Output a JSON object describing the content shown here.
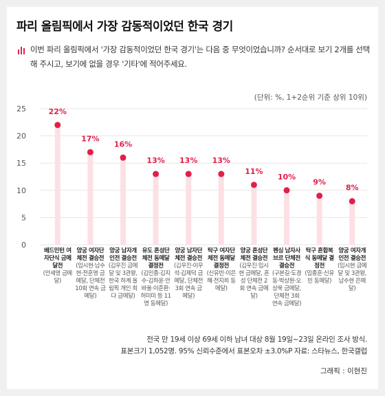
{
  "title": "파리 올림픽에서 가장 감동적이었던 한국 경기",
  "question": "이번 파리 올림픽에서 '가장 감동적이었던 한국 경기'는 다음 중 무엇이었습니까? 순서대로 보기 2개를 선택해 주시고, 보기에 없을 경우 '기타'에 적어주세요.",
  "unit_note": "(단위: %, 1+2순위 기준 상위 10위)",
  "footnote_line1": "전국 만 19세 이상 69세 이하 남녀 대상 8월 19일~23일 온라인 조사 방식.",
  "footnote_line2": "표본크기 1,052명. 95% 신뢰수준에서 표본오차 ±3.0%P 자료: 스타뉴스, 한국갤럽",
  "credit": "그래픽 : 이현진",
  "colors": {
    "dot": "#e0204a",
    "bar": "#fde0e4",
    "value_label": "#e0204a",
    "grid": "#e6e6e6",
    "icon": "#e0204a"
  },
  "chart_data": {
    "type": "bar",
    "title": "파리 올림픽에서 가장 감동적이었던 한국 경기",
    "ylim": [
      0,
      25
    ],
    "yticks": [
      0,
      5,
      10,
      15,
      20,
      25
    ],
    "grid": true,
    "categories": [
      {
        "main": "배드민턴 여자단식 금메달전",
        "sub": "(안세영 금메달)"
      },
      {
        "main": "양궁 여자단체전 결승전",
        "sub": "(임시현·남수현·전훈영 금메달, 단체전 10회 연속 금메달)"
      },
      {
        "main": "양궁 남자개인전 결승전",
        "sub": "(김우진 금메달 및 3관왕, 한국 하계 올림픽 개인 최다 금메달)"
      },
      {
        "main": "유도 혼성단체전 동메달결정전",
        "sub": "(김민종·김지수·김하윤·안바울·이준환·허미미 등 11명 동메달)"
      },
      {
        "main": "양궁 남자단체전 결승전",
        "sub": "(김우진·이우석·김제덕 금메달, 단체전 3회 연속 금메달)"
      },
      {
        "main": "탁구 여자단체전 동메달결정전",
        "sub": "(신유빈·이은혜·전지희 동메달)"
      },
      {
        "main": "양궁 혼성단체전 결승전",
        "sub": "(김우진·임시현 금메달, 혼성 단체전 2회 연속 금메달)"
      },
      {
        "main": "펜싱 남자사브르 단체전 결승전",
        "sub": "(구본길·도경동·박상원·오상욱 금메달, 단체전 3회 연속 금메달)"
      },
      {
        "main": "탁구 혼합복식 동메달 결정전",
        "sub": "(임종훈·신유빈 동메달)"
      },
      {
        "main": "양궁 여자개인전 결승전",
        "sub": "(임시현 금메달 및 3관왕, 남수현 은메달)"
      }
    ],
    "values": [
      22,
      17,
      16,
      13,
      13,
      13,
      11,
      10,
      9,
      8
    ],
    "value_labels": [
      "22%",
      "17%",
      "16%",
      "13%",
      "13%",
      "13%",
      "11%",
      "10%",
      "9%",
      "8%"
    ]
  }
}
